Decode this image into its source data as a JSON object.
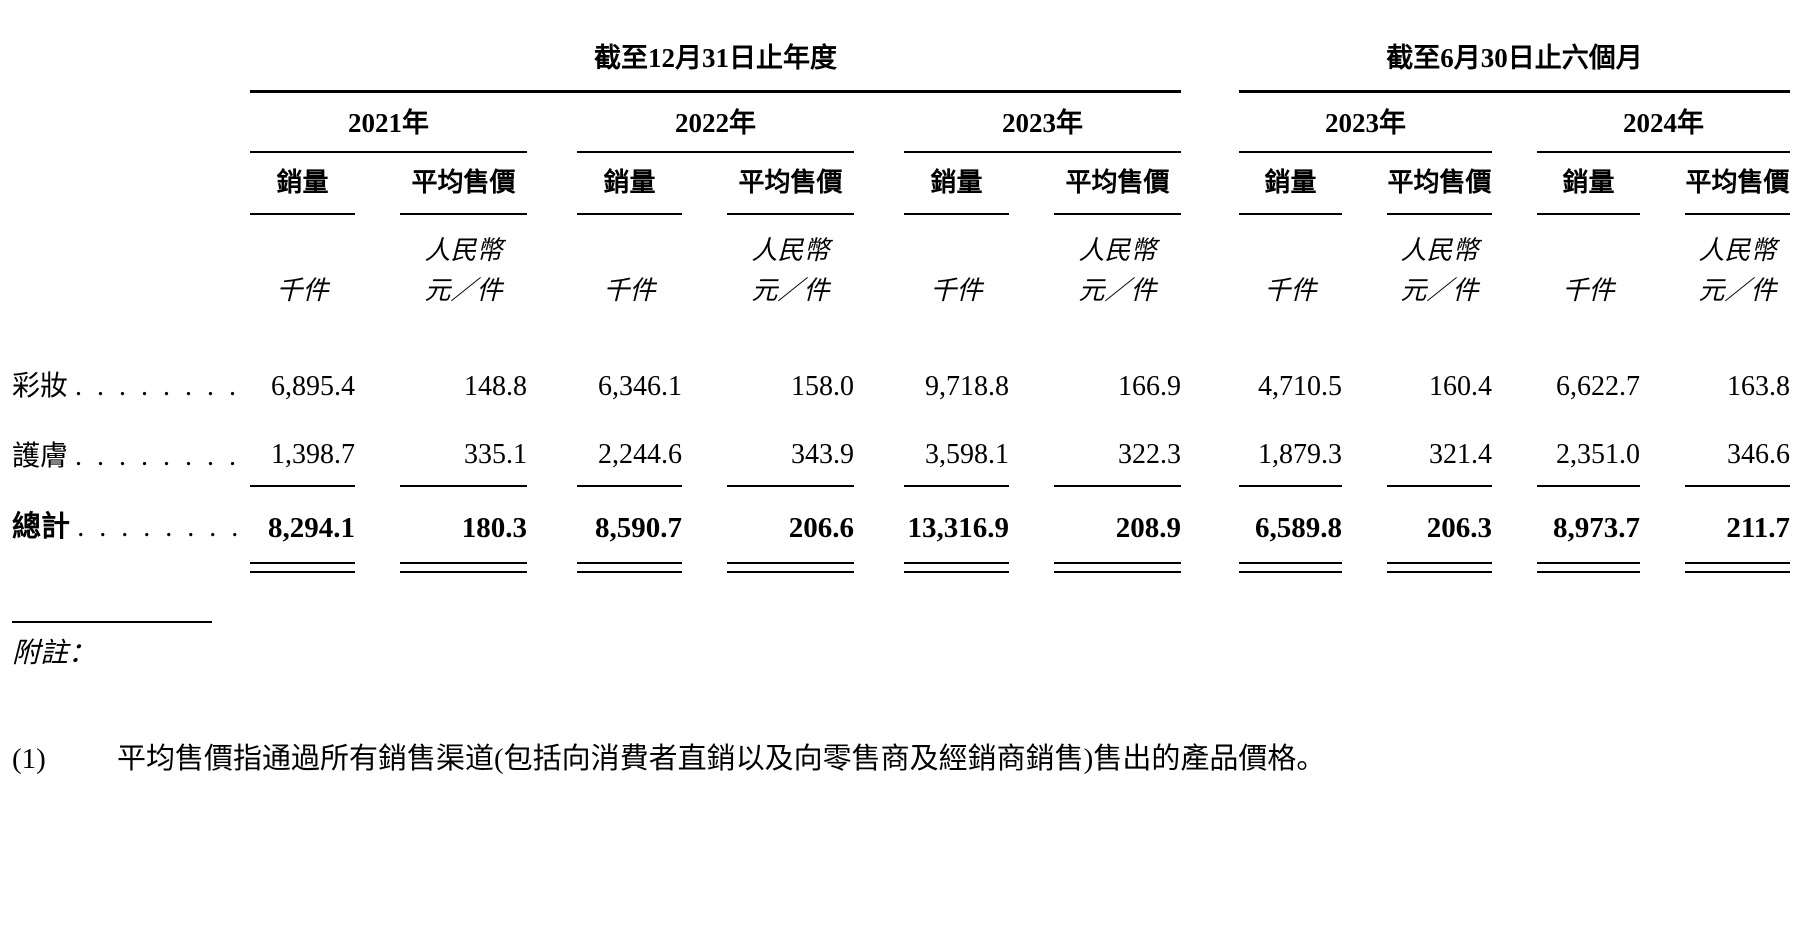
{
  "table": {
    "group1_title": "截至12月31日止年度",
    "group2_title": "截至6月30日止六個月",
    "years": [
      "2021年",
      "2022年",
      "2023年",
      "2023年",
      "2024年"
    ],
    "col_volume": "銷量",
    "col_asp": "平均售價",
    "unit_currency": "人民幣",
    "unit_volume": "千件",
    "unit_price": "元／件",
    "leader_dots": ". . . . . . . . . .",
    "rows": [
      {
        "label": "彩妝",
        "values": [
          "6,895.4",
          "148.8",
          "6,346.1",
          "158.0",
          "9,718.8",
          "166.9",
          "4,710.5",
          "160.4",
          "6,622.7",
          "163.8"
        ]
      },
      {
        "label": "護膚",
        "values": [
          "1,398.7",
          "335.1",
          "2,244.6",
          "343.9",
          "3,598.1",
          "322.3",
          "1,879.3",
          "321.4",
          "2,351.0",
          "346.6"
        ]
      },
      {
        "label": "總計",
        "values": [
          "8,294.1",
          "180.3",
          "8,590.7",
          "206.6",
          "13,316.9",
          "208.9",
          "6,589.8",
          "206.3",
          "8,973.7",
          "211.7"
        ]
      }
    ],
    "notes_heading": "附註：",
    "note1_label": "(1)",
    "note1_text": "平均售價指通過所有銷售渠道(包括向消費者直銷以及向零售商及經銷商銷售)售出的產品價格。"
  }
}
